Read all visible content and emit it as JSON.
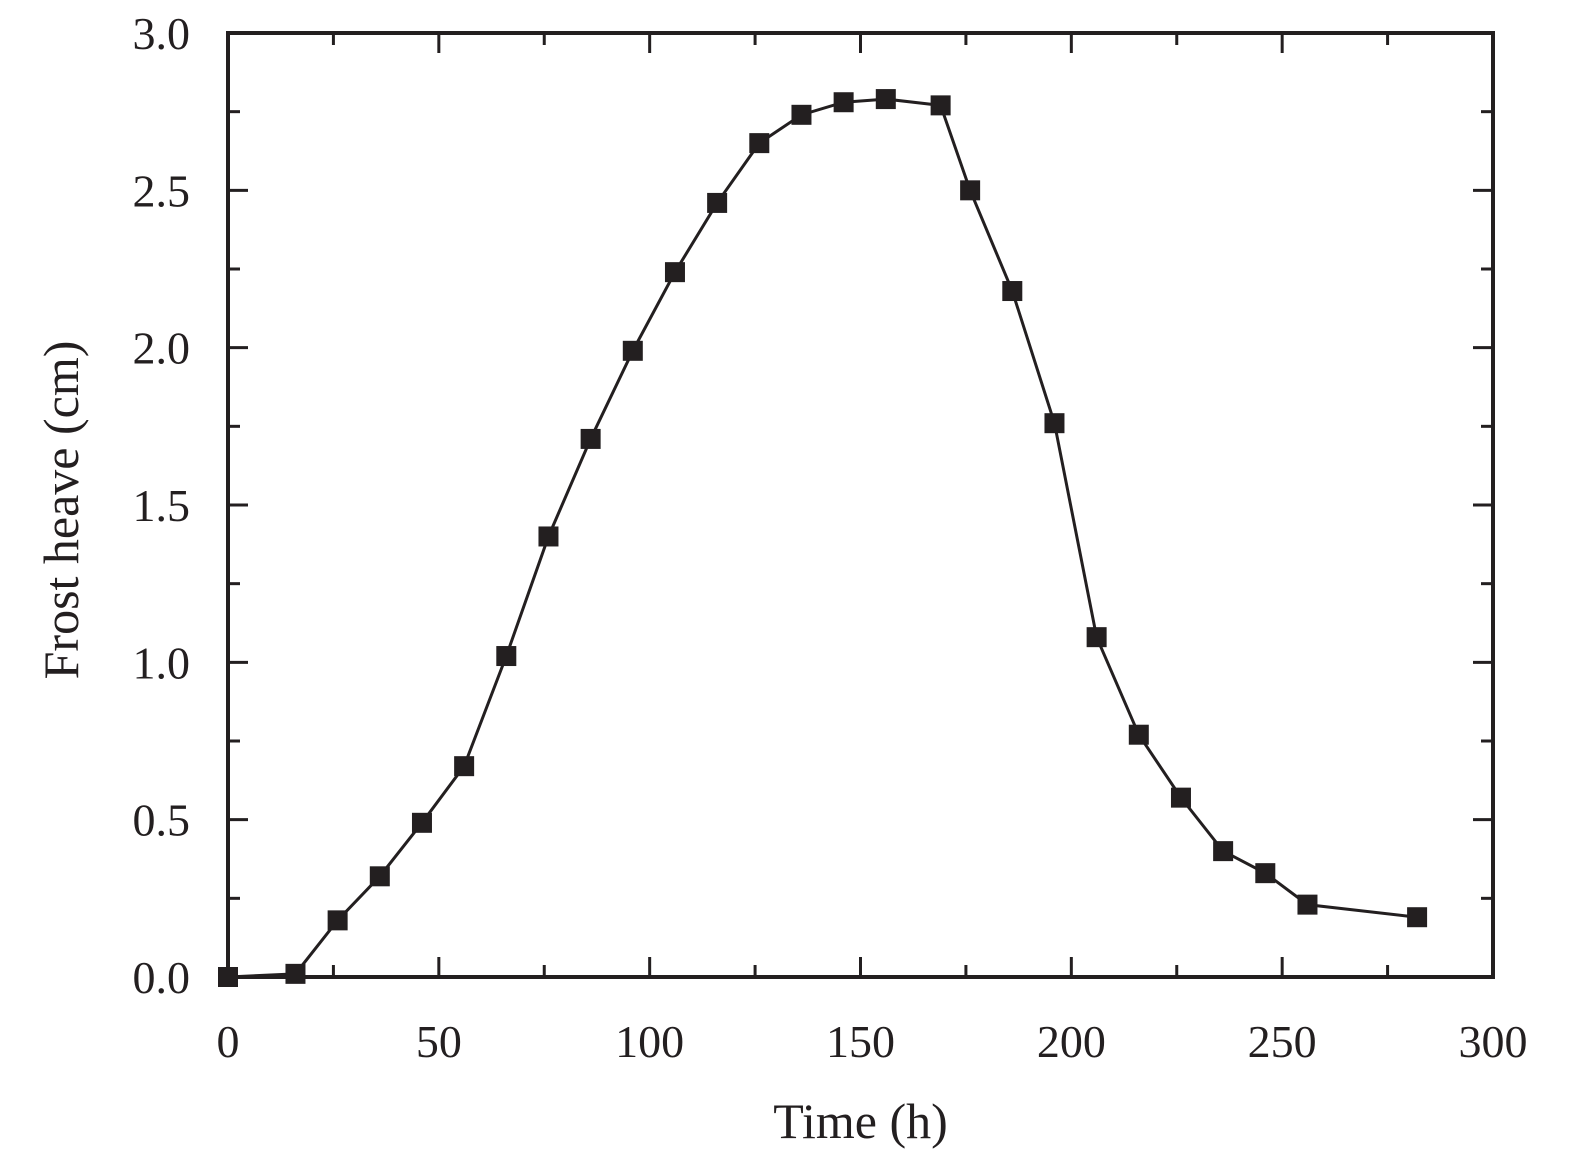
{
  "chart_data": {
    "type": "line",
    "title": "",
    "xlabel": "Time (h)",
    "ylabel": "Frost heave (cm)",
    "xlim": [
      0,
      300
    ],
    "ylim": [
      0,
      3.0
    ],
    "xticks": [
      0,
      50,
      100,
      150,
      200,
      250,
      300
    ],
    "xtick_labels": [
      "0",
      "50",
      "100",
      "150",
      "200",
      "250",
      "300"
    ],
    "yticks": [
      0,
      0.5,
      1.0,
      1.5,
      2.0,
      2.5,
      3.0
    ],
    "ytick_labels": [
      "0.0",
      "0.5",
      "1.0",
      "1.5",
      "2.0",
      "2.5",
      "3.0"
    ],
    "grid": false,
    "marker": "square",
    "color": "#231f20",
    "series": [
      {
        "x": [
          0,
          16,
          26,
          36,
          46,
          56,
          66,
          76,
          86,
          96,
          106,
          116,
          126,
          136,
          146,
          156,
          169,
          176,
          186,
          196,
          206,
          216,
          226,
          236,
          246,
          256,
          282
        ],
        "y": [
          0.0,
          0.01,
          0.18,
          0.32,
          0.49,
          0.67,
          1.02,
          1.4,
          1.71,
          1.99,
          2.24,
          2.46,
          2.65,
          2.74,
          2.78,
          2.79,
          2.77,
          2.5,
          2.18,
          1.76,
          1.08,
          0.77,
          0.57,
          0.4,
          0.33,
          0.23,
          0.19
        ]
      }
    ]
  }
}
